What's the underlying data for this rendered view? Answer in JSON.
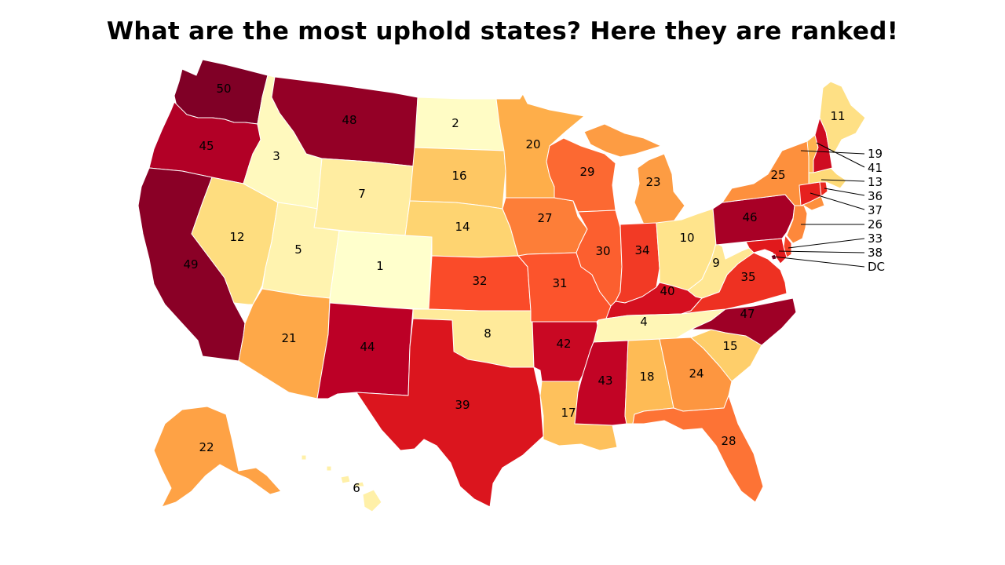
{
  "title": "What are the most uphold states? Here they are ranked!",
  "color_scale": {
    "low": "#ffffcc",
    "high": "#800026",
    "min_rank": 1,
    "max_rank": 50
  },
  "states": [
    {
      "abbr": "CO",
      "name": "Colorado",
      "rank": 1,
      "label": "1"
    },
    {
      "abbr": "ND",
      "name": "North Dakota",
      "rank": 2,
      "label": "2"
    },
    {
      "abbr": "ID",
      "name": "Idaho",
      "rank": 3,
      "label": "3"
    },
    {
      "abbr": "TN",
      "name": "Tennessee",
      "rank": 4,
      "label": "4"
    },
    {
      "abbr": "UT",
      "name": "Utah",
      "rank": 5,
      "label": "5"
    },
    {
      "abbr": "HI",
      "name": "Hawaii",
      "rank": 6,
      "label": "6"
    },
    {
      "abbr": "WY",
      "name": "Wyoming",
      "rank": 7,
      "label": "7"
    },
    {
      "abbr": "OK",
      "name": "Oklahoma",
      "rank": 8,
      "label": "8"
    },
    {
      "abbr": "WV",
      "name": "West Virginia",
      "rank": 9,
      "label": "9"
    },
    {
      "abbr": "OH",
      "name": "Ohio",
      "rank": 10,
      "label": "10"
    },
    {
      "abbr": "ME",
      "name": "Maine",
      "rank": 11,
      "label": "11"
    },
    {
      "abbr": "NV",
      "name": "Nevada",
      "rank": 12,
      "label": "12"
    },
    {
      "abbr": "MA",
      "name": "Massachusetts",
      "rank": 13,
      "label": "13"
    },
    {
      "abbr": "NE",
      "name": "Nebraska",
      "rank": 14,
      "label": "14"
    },
    {
      "abbr": "SC",
      "name": "South Carolina",
      "rank": 15,
      "label": "15"
    },
    {
      "abbr": "SD",
      "name": "South Dakota",
      "rank": 16,
      "label": "16"
    },
    {
      "abbr": "LA",
      "name": "Louisiana",
      "rank": 17,
      "label": "17"
    },
    {
      "abbr": "AL",
      "name": "Alabama",
      "rank": 18,
      "label": "18"
    },
    {
      "abbr": "VT",
      "name": "Vermont",
      "rank": 19,
      "label": "19"
    },
    {
      "abbr": "MN",
      "name": "Minnesota",
      "rank": 20,
      "label": "20"
    },
    {
      "abbr": "AZ",
      "name": "Arizona",
      "rank": 21,
      "label": "21"
    },
    {
      "abbr": "AK",
      "name": "Alaska",
      "rank": 22,
      "label": "22"
    },
    {
      "abbr": "MI",
      "name": "Michigan",
      "rank": 23,
      "label": "23"
    },
    {
      "abbr": "GA",
      "name": "Georgia",
      "rank": 24,
      "label": "24"
    },
    {
      "abbr": "NY",
      "name": "New York",
      "rank": 25,
      "label": "25"
    },
    {
      "abbr": "NJ",
      "name": "New Jersey",
      "rank": 26,
      "label": "26"
    },
    {
      "abbr": "IA",
      "name": "Iowa",
      "rank": 27,
      "label": "27"
    },
    {
      "abbr": "FL",
      "name": "Florida",
      "rank": 28,
      "label": "28"
    },
    {
      "abbr": "WI",
      "name": "Wisconsin",
      "rank": 29,
      "label": "29"
    },
    {
      "abbr": "IL",
      "name": "Illinois",
      "rank": 30,
      "label": "30"
    },
    {
      "abbr": "MO",
      "name": "Missouri",
      "rank": 31,
      "label": "31"
    },
    {
      "abbr": "KS",
      "name": "Kansas",
      "rank": 32,
      "label": "32"
    },
    {
      "abbr": "DE",
      "name": "Delaware",
      "rank": 33,
      "label": "33"
    },
    {
      "abbr": "IN",
      "name": "Indiana",
      "rank": 34,
      "label": "34"
    },
    {
      "abbr": "VA",
      "name": "Virginia",
      "rank": 35,
      "label": "35"
    },
    {
      "abbr": "RI",
      "name": "Rhode Island",
      "rank": 36,
      "label": "36"
    },
    {
      "abbr": "CT",
      "name": "Connecticut",
      "rank": 37,
      "label": "37"
    },
    {
      "abbr": "MD",
      "name": "Maryland",
      "rank": 38,
      "label": "38"
    },
    {
      "abbr": "TX",
      "name": "Texas",
      "rank": 39,
      "label": "39"
    },
    {
      "abbr": "KY",
      "name": "Kentucky",
      "rank": 40,
      "label": "40"
    },
    {
      "abbr": "NH",
      "name": "New Hampshire",
      "rank": 41,
      "label": "41"
    },
    {
      "abbr": "AR",
      "name": "Arkansas",
      "rank": 42,
      "label": "42"
    },
    {
      "abbr": "MS",
      "name": "Mississippi",
      "rank": 43,
      "label": "43"
    },
    {
      "abbr": "NM",
      "name": "New Mexico",
      "rank": 44,
      "label": "44"
    },
    {
      "abbr": "OR",
      "name": "Oregon",
      "rank": 45,
      "label": "45"
    },
    {
      "abbr": "PA",
      "name": "Pennsylvania",
      "rank": 46,
      "label": "46"
    },
    {
      "abbr": "NC",
      "name": "North Carolina",
      "rank": 47,
      "label": "47"
    },
    {
      "abbr": "MT",
      "name": "Montana",
      "rank": 48,
      "label": "48"
    },
    {
      "abbr": "CA",
      "name": "California",
      "rank": 49,
      "label": "49"
    },
    {
      "abbr": "WA",
      "name": "Washington",
      "rank": 50,
      "label": "50"
    },
    {
      "abbr": "DC",
      "name": "District of Columbia",
      "rank": null,
      "label": "DC"
    }
  ]
}
